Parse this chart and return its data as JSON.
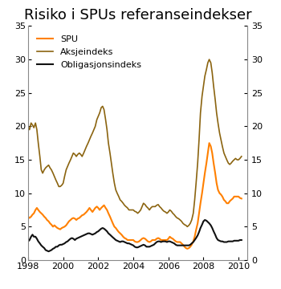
{
  "title": "Risiko i SPUs referanseindekser",
  "xlim": [
    1998.0,
    2010.5
  ],
  "ylim": [
    0,
    35
  ],
  "yticks": [
    0,
    5,
    10,
    15,
    20,
    25,
    30,
    35
  ],
  "xticks": [
    1998,
    2000,
    2002,
    2004,
    2006,
    2008,
    2010
  ],
  "color_spu": "#FF8000",
  "color_aksje": "#8B6410",
  "color_oblig": "#111111",
  "legend_labels": [
    "SPU",
    "Aksjeindeks",
    "Obligasjonsindeks"
  ],
  "title_fontsize": 13,
  "tick_fontsize": 8,
  "background_color": "#ffffff",
  "spu": [
    [
      1998.0,
      6.5
    ],
    [
      1998.08,
      6.3
    ],
    [
      1998.17,
      6.5
    ],
    [
      1998.25,
      6.8
    ],
    [
      1998.33,
      7.0
    ],
    [
      1998.42,
      7.5
    ],
    [
      1998.5,
      7.8
    ],
    [
      1998.58,
      7.5
    ],
    [
      1998.67,
      7.2
    ],
    [
      1998.75,
      7.0
    ],
    [
      1998.83,
      6.8
    ],
    [
      1998.92,
      6.5
    ],
    [
      1999.0,
      6.3
    ],
    [
      1999.08,
      6.0
    ],
    [
      1999.17,
      5.8
    ],
    [
      1999.25,
      5.5
    ],
    [
      1999.33,
      5.3
    ],
    [
      1999.42,
      5.0
    ],
    [
      1999.5,
      5.2
    ],
    [
      1999.58,
      5.0
    ],
    [
      1999.67,
      4.8
    ],
    [
      1999.75,
      4.7
    ],
    [
      1999.83,
      4.6
    ],
    [
      1999.92,
      4.8
    ],
    [
      2000.0,
      4.9
    ],
    [
      2000.08,
      5.0
    ],
    [
      2000.17,
      5.2
    ],
    [
      2000.25,
      5.5
    ],
    [
      2000.33,
      5.8
    ],
    [
      2000.42,
      6.0
    ],
    [
      2000.5,
      6.2
    ],
    [
      2000.58,
      6.3
    ],
    [
      2000.67,
      6.2
    ],
    [
      2000.75,
      6.0
    ],
    [
      2000.83,
      6.2
    ],
    [
      2000.92,
      6.3
    ],
    [
      2001.0,
      6.5
    ],
    [
      2001.08,
      6.7
    ],
    [
      2001.17,
      6.8
    ],
    [
      2001.25,
      7.0
    ],
    [
      2001.33,
      7.2
    ],
    [
      2001.42,
      7.5
    ],
    [
      2001.5,
      7.8
    ],
    [
      2001.58,
      7.5
    ],
    [
      2001.67,
      7.2
    ],
    [
      2001.75,
      7.5
    ],
    [
      2001.83,
      7.8
    ],
    [
      2001.92,
      8.0
    ],
    [
      2002.0,
      7.8
    ],
    [
      2002.08,
      7.5
    ],
    [
      2002.17,
      7.8
    ],
    [
      2002.25,
      8.0
    ],
    [
      2002.33,
      8.2
    ],
    [
      2002.42,
      7.8
    ],
    [
      2002.5,
      7.5
    ],
    [
      2002.58,
      7.0
    ],
    [
      2002.67,
      6.5
    ],
    [
      2002.75,
      6.0
    ],
    [
      2002.83,
      5.5
    ],
    [
      2002.92,
      5.0
    ],
    [
      2003.0,
      4.8
    ],
    [
      2003.08,
      4.5
    ],
    [
      2003.17,
      4.2
    ],
    [
      2003.25,
      4.0
    ],
    [
      2003.33,
      3.8
    ],
    [
      2003.42,
      3.5
    ],
    [
      2003.5,
      3.3
    ],
    [
      2003.58,
      3.2
    ],
    [
      2003.67,
      3.0
    ],
    [
      2003.75,
      3.0
    ],
    [
      2003.83,
      3.0
    ],
    [
      2003.92,
      3.0
    ],
    [
      2004.0,
      3.0
    ],
    [
      2004.08,
      2.8
    ],
    [
      2004.17,
      2.7
    ],
    [
      2004.25,
      2.7
    ],
    [
      2004.33,
      2.8
    ],
    [
      2004.42,
      3.0
    ],
    [
      2004.5,
      3.2
    ],
    [
      2004.58,
      3.3
    ],
    [
      2004.67,
      3.2
    ],
    [
      2004.75,
      3.0
    ],
    [
      2004.83,
      2.8
    ],
    [
      2004.92,
      2.7
    ],
    [
      2005.0,
      2.8
    ],
    [
      2005.08,
      3.0
    ],
    [
      2005.17,
      3.0
    ],
    [
      2005.25,
      3.0
    ],
    [
      2005.33,
      3.2
    ],
    [
      2005.42,
      3.3
    ],
    [
      2005.5,
      3.2
    ],
    [
      2005.58,
      3.0
    ],
    [
      2005.67,
      3.0
    ],
    [
      2005.75,
      3.0
    ],
    [
      2005.83,
      3.0
    ],
    [
      2005.92,
      3.0
    ],
    [
      2006.0,
      3.2
    ],
    [
      2006.08,
      3.5
    ],
    [
      2006.17,
      3.3
    ],
    [
      2006.25,
      3.2
    ],
    [
      2006.33,
      3.0
    ],
    [
      2006.42,
      2.8
    ],
    [
      2006.5,
      2.7
    ],
    [
      2006.58,
      2.7
    ],
    [
      2006.67,
      2.7
    ],
    [
      2006.75,
      2.5
    ],
    [
      2006.83,
      2.3
    ],
    [
      2006.92,
      2.0
    ],
    [
      2007.0,
      1.8
    ],
    [
      2007.08,
      1.7
    ],
    [
      2007.17,
      1.8
    ],
    [
      2007.25,
      2.0
    ],
    [
      2007.33,
      2.3
    ],
    [
      2007.42,
      2.8
    ],
    [
      2007.5,
      3.5
    ],
    [
      2007.58,
      4.5
    ],
    [
      2007.67,
      5.5
    ],
    [
      2007.75,
      7.0
    ],
    [
      2007.83,
      8.5
    ],
    [
      2007.92,
      10.0
    ],
    [
      2008.0,
      11.5
    ],
    [
      2008.08,
      13.0
    ],
    [
      2008.17,
      14.5
    ],
    [
      2008.25,
      16.0
    ],
    [
      2008.33,
      17.5
    ],
    [
      2008.42,
      17.0
    ],
    [
      2008.5,
      16.0
    ],
    [
      2008.58,
      14.5
    ],
    [
      2008.67,
      13.0
    ],
    [
      2008.75,
      11.5
    ],
    [
      2008.83,
      10.5
    ],
    [
      2008.92,
      10.0
    ],
    [
      2009.0,
      9.8
    ],
    [
      2009.08,
      9.5
    ],
    [
      2009.17,
      9.0
    ],
    [
      2009.25,
      8.8
    ],
    [
      2009.33,
      8.5
    ],
    [
      2009.42,
      8.5
    ],
    [
      2009.5,
      8.8
    ],
    [
      2009.58,
      9.0
    ],
    [
      2009.67,
      9.2
    ],
    [
      2009.75,
      9.5
    ],
    [
      2009.83,
      9.5
    ],
    [
      2009.92,
      9.5
    ],
    [
      2010.0,
      9.5
    ],
    [
      2010.08,
      9.3
    ],
    [
      2010.17,
      9.2
    ]
  ],
  "aksje": [
    [
      1998.0,
      20.0
    ],
    [
      1998.08,
      19.5
    ],
    [
      1998.17,
      20.5
    ],
    [
      1998.25,
      20.2
    ],
    [
      1998.33,
      19.8
    ],
    [
      1998.42,
      20.5
    ],
    [
      1998.5,
      19.5
    ],
    [
      1998.58,
      17.5
    ],
    [
      1998.67,
      15.5
    ],
    [
      1998.75,
      13.5
    ],
    [
      1998.83,
      13.0
    ],
    [
      1998.92,
      13.5
    ],
    [
      1999.0,
      13.8
    ],
    [
      1999.08,
      14.0
    ],
    [
      1999.17,
      14.2
    ],
    [
      1999.25,
      13.8
    ],
    [
      1999.33,
      13.5
    ],
    [
      1999.42,
      13.0
    ],
    [
      1999.5,
      12.5
    ],
    [
      1999.58,
      12.0
    ],
    [
      1999.67,
      11.5
    ],
    [
      1999.75,
      11.0
    ],
    [
      1999.83,
      11.0
    ],
    [
      1999.92,
      11.2
    ],
    [
      2000.0,
      11.5
    ],
    [
      2000.08,
      12.5
    ],
    [
      2000.17,
      13.5
    ],
    [
      2000.25,
      14.0
    ],
    [
      2000.33,
      14.5
    ],
    [
      2000.42,
      15.0
    ],
    [
      2000.5,
      15.5
    ],
    [
      2000.58,
      16.0
    ],
    [
      2000.67,
      15.8
    ],
    [
      2000.75,
      15.5
    ],
    [
      2000.83,
      15.8
    ],
    [
      2000.92,
      16.0
    ],
    [
      2001.0,
      15.8
    ],
    [
      2001.08,
      15.5
    ],
    [
      2001.17,
      16.0
    ],
    [
      2001.25,
      16.5
    ],
    [
      2001.33,
      17.0
    ],
    [
      2001.42,
      17.5
    ],
    [
      2001.5,
      18.0
    ],
    [
      2001.58,
      18.5
    ],
    [
      2001.67,
      19.0
    ],
    [
      2001.75,
      19.5
    ],
    [
      2001.83,
      20.0
    ],
    [
      2001.92,
      21.0
    ],
    [
      2002.0,
      21.5
    ],
    [
      2002.08,
      22.0
    ],
    [
      2002.17,
      22.8
    ],
    [
      2002.25,
      23.0
    ],
    [
      2002.33,
      22.5
    ],
    [
      2002.42,
      21.0
    ],
    [
      2002.5,
      19.5
    ],
    [
      2002.58,
      17.5
    ],
    [
      2002.67,
      16.0
    ],
    [
      2002.75,
      14.5
    ],
    [
      2002.83,
      13.0
    ],
    [
      2002.92,
      11.5
    ],
    [
      2003.0,
      10.5
    ],
    [
      2003.08,
      10.0
    ],
    [
      2003.17,
      9.5
    ],
    [
      2003.25,
      9.0
    ],
    [
      2003.33,
      8.8
    ],
    [
      2003.42,
      8.5
    ],
    [
      2003.5,
      8.2
    ],
    [
      2003.58,
      8.0
    ],
    [
      2003.67,
      7.8
    ],
    [
      2003.75,
      7.5
    ],
    [
      2003.83,
      7.5
    ],
    [
      2003.92,
      7.5
    ],
    [
      2004.0,
      7.5
    ],
    [
      2004.08,
      7.3
    ],
    [
      2004.17,
      7.2
    ],
    [
      2004.25,
      7.0
    ],
    [
      2004.33,
      7.2
    ],
    [
      2004.42,
      7.5
    ],
    [
      2004.5,
      8.0
    ],
    [
      2004.58,
      8.5
    ],
    [
      2004.67,
      8.3
    ],
    [
      2004.75,
      8.0
    ],
    [
      2004.83,
      7.8
    ],
    [
      2004.92,
      7.5
    ],
    [
      2005.0,
      7.8
    ],
    [
      2005.08,
      8.0
    ],
    [
      2005.17,
      8.0
    ],
    [
      2005.25,
      8.0
    ],
    [
      2005.33,
      8.2
    ],
    [
      2005.42,
      8.3
    ],
    [
      2005.5,
      8.0
    ],
    [
      2005.58,
      7.8
    ],
    [
      2005.67,
      7.5
    ],
    [
      2005.75,
      7.3
    ],
    [
      2005.83,
      7.2
    ],
    [
      2005.92,
      7.0
    ],
    [
      2006.0,
      7.2
    ],
    [
      2006.08,
      7.5
    ],
    [
      2006.17,
      7.3
    ],
    [
      2006.25,
      7.0
    ],
    [
      2006.33,
      6.8
    ],
    [
      2006.42,
      6.5
    ],
    [
      2006.5,
      6.3
    ],
    [
      2006.58,
      6.2
    ],
    [
      2006.67,
      6.0
    ],
    [
      2006.75,
      5.8
    ],
    [
      2006.83,
      5.5
    ],
    [
      2006.92,
      5.3
    ],
    [
      2007.0,
      5.2
    ],
    [
      2007.08,
      5.0
    ],
    [
      2007.17,
      5.2
    ],
    [
      2007.25,
      5.5
    ],
    [
      2007.33,
      6.0
    ],
    [
      2007.42,
      7.0
    ],
    [
      2007.5,
      9.0
    ],
    [
      2007.58,
      11.5
    ],
    [
      2007.67,
      14.5
    ],
    [
      2007.75,
      18.0
    ],
    [
      2007.83,
      22.0
    ],
    [
      2007.92,
      24.5
    ],
    [
      2008.0,
      26.0
    ],
    [
      2008.08,
      27.5
    ],
    [
      2008.17,
      28.5
    ],
    [
      2008.25,
      29.5
    ],
    [
      2008.33,
      30.0
    ],
    [
      2008.42,
      29.5
    ],
    [
      2008.5,
      28.0
    ],
    [
      2008.58,
      26.0
    ],
    [
      2008.67,
      24.0
    ],
    [
      2008.75,
      22.0
    ],
    [
      2008.83,
      20.5
    ],
    [
      2008.92,
      19.0
    ],
    [
      2009.0,
      18.0
    ],
    [
      2009.08,
      17.0
    ],
    [
      2009.17,
      16.0
    ],
    [
      2009.25,
      15.5
    ],
    [
      2009.33,
      15.0
    ],
    [
      2009.42,
      14.5
    ],
    [
      2009.5,
      14.3
    ],
    [
      2009.58,
      14.5
    ],
    [
      2009.67,
      14.8
    ],
    [
      2009.75,
      15.0
    ],
    [
      2009.83,
      15.2
    ],
    [
      2009.92,
      15.0
    ],
    [
      2010.0,
      15.0
    ],
    [
      2010.08,
      15.2
    ],
    [
      2010.17,
      15.5
    ]
  ],
  "oblig": [
    [
      1998.0,
      2.8
    ],
    [
      1998.08,
      3.0
    ],
    [
      1998.17,
      3.5
    ],
    [
      1998.25,
      3.8
    ],
    [
      1998.33,
      3.5
    ],
    [
      1998.42,
      3.5
    ],
    [
      1998.5,
      3.2
    ],
    [
      1998.58,
      2.8
    ],
    [
      1998.67,
      2.5
    ],
    [
      1998.75,
      2.2
    ],
    [
      1998.83,
      2.0
    ],
    [
      1998.92,
      1.8
    ],
    [
      1999.0,
      1.5
    ],
    [
      1999.08,
      1.4
    ],
    [
      1999.17,
      1.3
    ],
    [
      1999.25,
      1.4
    ],
    [
      1999.33,
      1.5
    ],
    [
      1999.42,
      1.7
    ],
    [
      1999.5,
      1.8
    ],
    [
      1999.58,
      2.0
    ],
    [
      1999.67,
      2.0
    ],
    [
      1999.75,
      2.2
    ],
    [
      1999.83,
      2.3
    ],
    [
      1999.92,
      2.3
    ],
    [
      2000.0,
      2.4
    ],
    [
      2000.08,
      2.5
    ],
    [
      2000.17,
      2.7
    ],
    [
      2000.25,
      2.8
    ],
    [
      2000.33,
      3.0
    ],
    [
      2000.42,
      3.2
    ],
    [
      2000.5,
      3.3
    ],
    [
      2000.58,
      3.2
    ],
    [
      2000.67,
      3.0
    ],
    [
      2000.75,
      3.2
    ],
    [
      2000.83,
      3.3
    ],
    [
      2000.92,
      3.4
    ],
    [
      2001.0,
      3.5
    ],
    [
      2001.08,
      3.6
    ],
    [
      2001.17,
      3.7
    ],
    [
      2001.25,
      3.8
    ],
    [
      2001.33,
      3.9
    ],
    [
      2001.42,
      4.0
    ],
    [
      2001.5,
      4.0
    ],
    [
      2001.58,
      3.9
    ],
    [
      2001.67,
      3.8
    ],
    [
      2001.75,
      3.9
    ],
    [
      2001.83,
      4.0
    ],
    [
      2001.92,
      4.2
    ],
    [
      2002.0,
      4.3
    ],
    [
      2002.08,
      4.5
    ],
    [
      2002.17,
      4.7
    ],
    [
      2002.25,
      4.8
    ],
    [
      2002.33,
      4.7
    ],
    [
      2002.42,
      4.5
    ],
    [
      2002.5,
      4.3
    ],
    [
      2002.58,
      4.0
    ],
    [
      2002.67,
      3.8
    ],
    [
      2002.75,
      3.6
    ],
    [
      2002.83,
      3.4
    ],
    [
      2002.92,
      3.2
    ],
    [
      2003.0,
      3.0
    ],
    [
      2003.08,
      2.9
    ],
    [
      2003.17,
      2.8
    ],
    [
      2003.25,
      2.7
    ],
    [
      2003.33,
      2.8
    ],
    [
      2003.42,
      2.8
    ],
    [
      2003.5,
      2.7
    ],
    [
      2003.58,
      2.6
    ],
    [
      2003.67,
      2.5
    ],
    [
      2003.75,
      2.5
    ],
    [
      2003.83,
      2.4
    ],
    [
      2003.92,
      2.3
    ],
    [
      2004.0,
      2.2
    ],
    [
      2004.08,
      2.0
    ],
    [
      2004.17,
      1.9
    ],
    [
      2004.25,
      1.9
    ],
    [
      2004.33,
      2.0
    ],
    [
      2004.42,
      2.1
    ],
    [
      2004.5,
      2.2
    ],
    [
      2004.58,
      2.3
    ],
    [
      2004.67,
      2.2
    ],
    [
      2004.75,
      2.0
    ],
    [
      2004.83,
      2.0
    ],
    [
      2004.92,
      2.0
    ],
    [
      2005.0,
      2.1
    ],
    [
      2005.08,
      2.2
    ],
    [
      2005.17,
      2.3
    ],
    [
      2005.25,
      2.5
    ],
    [
      2005.33,
      2.7
    ],
    [
      2005.42,
      2.8
    ],
    [
      2005.5,
      2.8
    ],
    [
      2005.58,
      2.7
    ],
    [
      2005.67,
      2.8
    ],
    [
      2005.75,
      2.8
    ],
    [
      2005.83,
      2.8
    ],
    [
      2005.92,
      2.7
    ],
    [
      2006.0,
      2.8
    ],
    [
      2006.08,
      2.8
    ],
    [
      2006.17,
      2.7
    ],
    [
      2006.25,
      2.6
    ],
    [
      2006.33,
      2.5
    ],
    [
      2006.42,
      2.3
    ],
    [
      2006.5,
      2.2
    ],
    [
      2006.58,
      2.2
    ],
    [
      2006.67,
      2.2
    ],
    [
      2006.75,
      2.2
    ],
    [
      2006.83,
      2.2
    ],
    [
      2006.92,
      2.2
    ],
    [
      2007.0,
      2.2
    ],
    [
      2007.08,
      2.2
    ],
    [
      2007.17,
      2.2
    ],
    [
      2007.25,
      2.3
    ],
    [
      2007.33,
      2.5
    ],
    [
      2007.42,
      2.7
    ],
    [
      2007.5,
      3.0
    ],
    [
      2007.58,
      3.3
    ],
    [
      2007.67,
      3.7
    ],
    [
      2007.75,
      4.2
    ],
    [
      2007.83,
      4.8
    ],
    [
      2007.92,
      5.3
    ],
    [
      2008.0,
      5.8
    ],
    [
      2008.08,
      6.0
    ],
    [
      2008.17,
      5.9
    ],
    [
      2008.25,
      5.7
    ],
    [
      2008.33,
      5.5
    ],
    [
      2008.42,
      5.2
    ],
    [
      2008.5,
      4.8
    ],
    [
      2008.58,
      4.3
    ],
    [
      2008.67,
      3.8
    ],
    [
      2008.75,
      3.3
    ],
    [
      2008.83,
      3.0
    ],
    [
      2008.92,
      2.9
    ],
    [
      2009.0,
      2.8
    ],
    [
      2009.08,
      2.8
    ],
    [
      2009.17,
      2.7
    ],
    [
      2009.25,
      2.7
    ],
    [
      2009.33,
      2.7
    ],
    [
      2009.42,
      2.8
    ],
    [
      2009.5,
      2.8
    ],
    [
      2009.58,
      2.8
    ],
    [
      2009.67,
      2.8
    ],
    [
      2009.75,
      2.9
    ],
    [
      2009.83,
      2.9
    ],
    [
      2009.92,
      2.9
    ],
    [
      2010.0,
      2.9
    ],
    [
      2010.08,
      3.0
    ],
    [
      2010.17,
      3.0
    ]
  ]
}
